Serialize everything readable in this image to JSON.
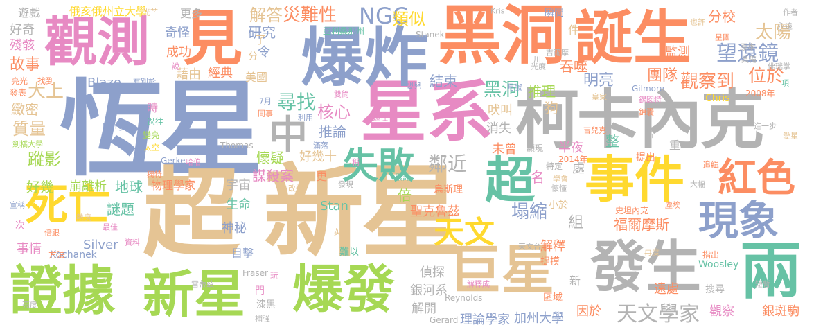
{
  "words": [
    {
      "text": "恆星",
      "color": "#8da0cb"
    },
    {
      "text": "新星",
      "color": "#e5c494"
    },
    {
      "text": "超",
      "color": "#e5c494"
    },
    {
      "text": "黑洞",
      "color": "#fc8d62"
    },
    {
      "text": "星系",
      "color": "#e78ac3"
    },
    {
      "text": "柯卡內克",
      "color": "#b3b3b3"
    },
    {
      "text": "誕生",
      "color": "#fc8d62"
    },
    {
      "text": "觀測",
      "color": "#e78ac3"
    },
    {
      "text": "爆炸",
      "color": "#8da0cb"
    },
    {
      "text": "見",
      "color": "#fc8d62"
    },
    {
      "text": "證據",
      "color": "#a6d854"
    },
    {
      "text": "新星",
      "color": "#a6d854"
    },
    {
      "text": "爆發",
      "color": "#a6d854"
    },
    {
      "text": "巨星",
      "color": "#e5c494"
    },
    {
      "text": "發生",
      "color": "#b3b3b3"
    },
    {
      "text": "兩",
      "color": "#66c2a5"
    },
    {
      "text": "事件",
      "color": "#ffd92f"
    },
    {
      "text": "超",
      "color": "#66c2a5"
    },
    {
      "text": "中",
      "color": "#b3b3b3"
    },
    {
      "text": "死亡",
      "color": "#ffd92f"
    },
    {
      "text": "現象",
      "color": "#8da0cb"
    },
    {
      "text": "紅色",
      "color": "#fc8d62"
    },
    {
      "text": "失敗",
      "color": "#66c2a5"
    },
    {
      "text": "天文",
      "color": "#ffd92f"
    },
    {
      "text": "天文學家",
      "color": "#b3b3b3"
    },
    {
      "text": "望遠鏡",
      "color": "#8da0cb"
    },
    {
      "text": "太陽",
      "color": "#e5c494"
    },
    {
      "text": "NGC",
      "color": "#8da0cb"
    },
    {
      "text": "災難性",
      "color": "#fc8d62"
    },
    {
      "text": "解答",
      "color": "#e5c494"
    },
    {
      "text": "類似",
      "color": "#ffd92f"
    },
    {
      "text": "分校",
      "color": "#fc8d62"
    },
    {
      "text": "觀察到",
      "color": "#fc8d62"
    },
    {
      "text": "團隊",
      "color": "#fc8d62"
    },
    {
      "text": "位於",
      "color": "#fc8d62"
    },
    {
      "text": "尋找",
      "color": "#66c2a5"
    },
    {
      "text": "核心",
      "color": "#e78ac3"
    },
    {
      "text": "黑洞",
      "color": "#66c2a5"
    },
    {
      "text": "推理",
      "color": "#a6d854"
    },
    {
      "text": "明亮",
      "color": "#8da0cb"
    },
    {
      "text": "鄰近",
      "color": "#b3b3b3"
    },
    {
      "text": "塌縮",
      "color": "#8da0cb"
    },
    {
      "text": "福爾摩斯",
      "color": "#fc8d62"
    },
    {
      "text": "地球",
      "color": "#66c2a5"
    },
    {
      "text": "謎題",
      "color": "#66c2a5"
    },
    {
      "text": "蹤影",
      "color": "#a6d854"
    },
    {
      "text": "質量",
      "color": "#e5c494"
    },
    {
      "text": "大上",
      "color": "#e5c494"
    },
    {
      "text": "緻密",
      "color": "#e5c494"
    },
    {
      "text": "故事",
      "color": "#fc8d62"
    },
    {
      "text": "殘骸",
      "color": "#e78ac3"
    },
    {
      "text": "好奇",
      "color": "#b3b3b3"
    },
    {
      "text": "遊戲",
      "color": "#b3b3b3"
    },
    {
      "text": "俄亥俄州立大學",
      "color": "#ffd92f"
    },
    {
      "text": "更多",
      "color": "#b3b3b3"
    },
    {
      "text": "奇怪",
      "color": "#8da0cb"
    },
    {
      "text": "成功",
      "color": "#fc8d62"
    },
    {
      "text": "研究",
      "color": "#8da0cb"
    },
    {
      "text": "經典",
      "color": "#fc8d62"
    },
    {
      "text": "藉由",
      "color": "#e5c494"
    },
    {
      "text": "美國",
      "color": "#e5c494"
    },
    {
      "text": "結束",
      "color": "#8da0cb"
    },
    {
      "text": "Blaze",
      "color": "#8da0cb"
    },
    {
      "text": "吞噬",
      "color": "#fc8d62"
    },
    {
      "text": "監測",
      "color": "#fc8d62"
    },
    {
      "text": "狗",
      "color": "#e5c494"
    },
    {
      "text": "吠叫",
      "color": "#e5c494"
    },
    {
      "text": "消失",
      "color": "#b3b3b3"
    },
    {
      "text": "推論",
      "color": "#8da0cb"
    },
    {
      "text": "好幾十",
      "color": "#e5c494"
    },
    {
      "text": "懷疑",
      "color": "#a6d854"
    },
    {
      "text": "謀殺案",
      "color": "#e78ac3"
    },
    {
      "text": "未曾",
      "color": "#fc8d62"
    },
    {
      "text": "半夜",
      "color": "#e78ac3"
    },
    {
      "text": "整",
      "color": "#66c2a5"
    },
    {
      "text": "好幾",
      "color": "#a6d854"
    },
    {
      "text": "崩離析",
      "color": "#a6d854"
    },
    {
      "text": "物理學家",
      "color": "#fc8d62"
    },
    {
      "text": "宇宙",
      "color": "#b3b3b3"
    },
    {
      "text": "倍",
      "color": "#a6d854"
    },
    {
      "text": "名",
      "color": "#e78ac3"
    },
    {
      "text": "組",
      "color": "#b3b3b3"
    },
    {
      "text": "處",
      "color": "#b3b3b3"
    },
    {
      "text": "生命",
      "color": "#66c2a5"
    },
    {
      "text": "神秘",
      "color": "#8da0cb"
    },
    {
      "text": "目擊",
      "color": "#8da0cb"
    },
    {
      "text": "Silver",
      "color": "#8da0cb"
    },
    {
      "text": "事情",
      "color": "#e78ac3"
    },
    {
      "text": "聖克魯茲",
      "color": "#fc8d62"
    },
    {
      "text": "Stan",
      "color": "#66c2a5"
    },
    {
      "text": "解釋",
      "color": "#fc8d62"
    },
    {
      "text": "偵探",
      "color": "#b3b3b3"
    },
    {
      "text": "銀河系",
      "color": "#b3b3b3"
    },
    {
      "text": "解開",
      "color": "#b3b3b3"
    },
    {
      "text": "理論學家",
      "color": "#8da0cb"
    },
    {
      "text": "加州大學",
      "color": "#8da0cb"
    },
    {
      "text": "因於",
      "color": "#fc8d62"
    },
    {
      "text": "遠處",
      "color": "#fc8d62"
    },
    {
      "text": "觀察",
      "color": "#e78ac3"
    },
    {
      "text": "銀斑駒",
      "color": "#fc8d62"
    },
    {
      "text": "Woosley",
      "color": "#66c2a5"
    },
    {
      "text": "Kochanek",
      "color": "#8da0cb"
    },
    {
      "text": "Reynolds",
      "color": "#b3b3b3"
    },
    {
      "text": "Gilmore",
      "color": "#8da0cb"
    },
    {
      "text": "Chris",
      "color": "#ffd92f"
    },
    {
      "text": "2008年",
      "color": "#fc8d62"
    },
    {
      "text": "Thomas",
      "color": "#b3b3b3"
    },
    {
      "text": "Morgan",
      "color": "#8da0cb"
    },
    {
      "text": "Gerke",
      "color": "#8da0cb"
    },
    {
      "text": "Fraser",
      "color": "#b3b3b3"
    },
    {
      "text": "Gerard",
      "color": "#b3b3b3"
    },
    {
      "text": "Stanek",
      "color": "#b3b3b3"
    },
    {
      "text": "Kris",
      "color": "#b3b3b3"
    },
    {
      "text": "亞利桑那州",
      "color": "#66c2a5"
    },
    {
      "text": "更",
      "color": "#fc8d62"
    },
    {
      "text": "了",
      "color": "#e5c494"
    },
    {
      "text": "令",
      "color": "#8da0cb"
    },
    {
      "text": "分",
      "color": "#e5c494"
    },
    {
      "text": "件",
      "color": "#e5c494"
    },
    {
      "text": "瞬間",
      "color": "#8da0cb"
    },
    {
      "text": "亮光",
      "color": "#fc8d62"
    },
    {
      "text": "找到",
      "color": "#fc8d62"
    },
    {
      "text": "發表",
      "color": "#fc8d62"
    },
    {
      "text": "時",
      "color": "#e78ac3"
    },
    {
      "text": "過往",
      "color": "#66c2a5"
    },
    {
      "text": "變亮",
      "color": "#a6d854"
    },
    {
      "text": "劍橋大學",
      "color": "#a6d854"
    },
    {
      "text": "太空",
      "color": "#ffd92f"
    },
    {
      "text": "宣稱",
      "color": "#8da0cb"
    },
    {
      "text": "次",
      "color": "#e78ac3"
    },
    {
      "text": "方法",
      "color": "#fc8d62"
    },
    {
      "text": "最佳",
      "color": "#e78ac3"
    },
    {
      "text": "倍跟",
      "color": "#fc8d62"
    },
    {
      "text": "資料",
      "color": "#e78ac3"
    },
    {
      "text": "熱度",
      "color": "#e5c494"
    },
    {
      "text": "英國",
      "color": "#e5c494"
    },
    {
      "text": "難以",
      "color": "#66c2a5"
    },
    {
      "text": "2014年",
      "color": "#fc8d62"
    },
    {
      "text": "特定",
      "color": "#b3b3b3"
    },
    {
      "text": "史坦內克",
      "color": "#fc8d62"
    },
    {
      "text": "提出",
      "color": "#fc8d62"
    },
    {
      "text": "追緝",
      "color": "#fc8d62"
    },
    {
      "text": "片",
      "color": "#b3b3b3"
    },
    {
      "text": "重",
      "color": "#b3b3b3"
    },
    {
      "text": "進一步",
      "color": "#b3b3b3"
    },
    {
      "text": "指出",
      "color": "#fc8d62"
    },
    {
      "text": "再度",
      "color": "#e5c494"
    },
    {
      "text": "捉摸",
      "color": "#fc8d62"
    },
    {
      "text": "搜尋",
      "color": "#b3b3b3"
    },
    {
      "text": "區域",
      "color": "#fc8d62"
    },
    {
      "text": "新",
      "color": "#b3b3b3"
    },
    {
      "text": "顯現",
      "color": "#b3b3b3"
    },
    {
      "text": "小於",
      "color": "#e5c494"
    },
    {
      "text": "漆黑",
      "color": "#b3b3b3"
    },
    {
      "text": "補強",
      "color": "#b3b3b3"
    },
    {
      "text": "門",
      "color": "#e78ac3"
    },
    {
      "text": "玩",
      "color": "#e78ac3"
    },
    {
      "text": "解釋成",
      "color": "#e78ac3"
    },
    {
      "text": "雷蒂茲",
      "color": "#b3b3b3"
    },
    {
      "text": "亮度",
      "color": "#b3b3b3"
    },
    {
      "text": "作者",
      "color": "#b3b3b3"
    },
    {
      "text": "原本",
      "color": "#b3b3b3"
    },
    {
      "text": "吉爾摩",
      "color": "#b3b3b3"
    },
    {
      "text": "具備",
      "color": "#b3b3b3"
    },
    {
      "text": "光度",
      "color": "#b3b3b3"
    },
    {
      "text": "星團",
      "color": "#fc8d62"
    },
    {
      "text": "佛瑞掌",
      "color": "#b3b3b3"
    },
    {
      "text": "永遠",
      "color": "#b3b3b3"
    },
    {
      "text": "也許",
      "color": "#e5c494"
    },
    {
      "text": "項",
      "color": "#66c2a5"
    },
    {
      "text": "同事",
      "color": "#fc8d62"
    },
    {
      "text": "7月",
      "color": "#8da0cb"
    },
    {
      "text": "有別於",
      "color": "#8da0cb"
    },
    {
      "text": "利用",
      "color": "#8da0cb"
    },
    {
      "text": "遮住",
      "color": "#e78ac3"
    },
    {
      "text": "雙筒",
      "color": "#e78ac3"
    },
    {
      "text": "嬰兒",
      "color": "#8da0cb"
    },
    {
      "text": "月號",
      "color": "#8da0cb"
    },
    {
      "text": "皇家",
      "color": "#e5c494"
    },
    {
      "text": "錦囊",
      "color": "#fc8d62"
    },
    {
      "text": "錫囡特",
      "color": "#e78ac3"
    },
    {
      "text": "愛星",
      "color": "#e5c494"
    },
    {
      "text": "吉兒克",
      "color": "#fc8d62"
    },
    {
      "text": "學會",
      "color": "#e5c494"
    },
    {
      "text": "懷懂",
      "color": "#b3b3b3"
    },
    {
      "text": "大幅",
      "color": "#b3b3b3"
    },
    {
      "text": "塵埃",
      "color": "#fc8d62"
    },
    {
      "text": "稱",
      "color": "#e78ac3"
    },
    {
      "text": "累計",
      "color": "#66c2a5"
    },
    {
      "text": "發現",
      "color": "#b3b3b3"
    },
    {
      "text": "改變",
      "color": "#e5c494"
    },
    {
      "text": "獨特",
      "color": "#fc8d62"
    },
    {
      "text": "哈伯",
      "color": "#e78ac3"
    },
    {
      "text": "說",
      "color": "#e78ac3"
    },
    {
      "text": "光芒",
      "color": "#e5c494"
    },
    {
      "text": "短暫",
      "color": "#b3b3b3"
    },
    {
      "text": "天文台",
      "color": "#b3b3b3"
    },
    {
      "text": "烏斯理",
      "color": "#fc8d62"
    },
    {
      "text": "川",
      "color": "#b3b3b3"
    },
    {
      "text": "滿落",
      "color": "#8da0cb"
    }
  ]
}
